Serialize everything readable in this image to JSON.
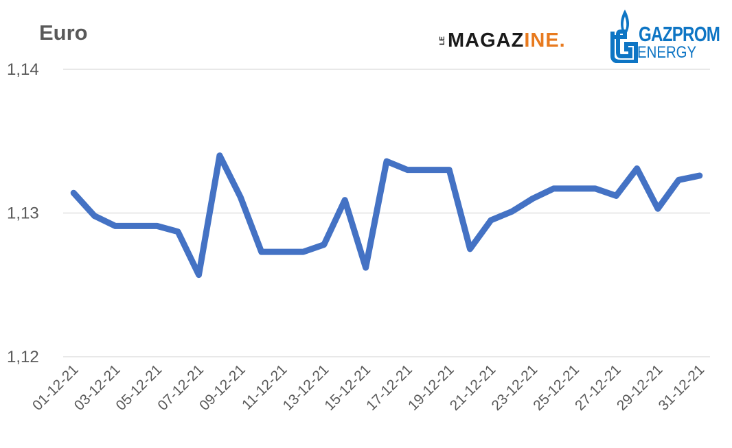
{
  "title": "Euro",
  "logos": {
    "magazine": {
      "prefix": "LE",
      "part1": "MAGAZ",
      "part2": "INE."
    },
    "gazprom": {
      "line1": "GAZPROM",
      "line2": "ENERGY",
      "icon": "gazprom-flame-icon"
    }
  },
  "colors": {
    "line": "#4472c4",
    "grid": "#d9d9d9",
    "text": "#595959",
    "magazine_accent": "#e87a1e",
    "gazprom_blue": "#0e75c4"
  },
  "chart_data": {
    "type": "line",
    "title": "Euro",
    "xlabel": "",
    "ylabel": "",
    "ylim": [
      1.12,
      1.14
    ],
    "yticks": [
      "1,12",
      "1,13",
      "1,14"
    ],
    "ytick_values": [
      1.12,
      1.13,
      1.14
    ],
    "grid": true,
    "xtick_labels": [
      "01-12-21",
      "03-12-21",
      "05-12-21",
      "07-12-21",
      "09-12-21",
      "11-12-21",
      "13-12-21",
      "15-12-21",
      "17-12-21",
      "19-12-21",
      "21-12-21",
      "23-12-21",
      "25-12-21",
      "27-12-21",
      "29-12-21",
      "31-12-21"
    ],
    "x": [
      "01-12-21",
      "02-12-21",
      "03-12-21",
      "04-12-21",
      "05-12-21",
      "06-12-21",
      "07-12-21",
      "08-12-21",
      "09-12-21",
      "10-12-21",
      "11-12-21",
      "12-12-21",
      "13-12-21",
      "14-12-21",
      "15-12-21",
      "16-12-21",
      "17-12-21",
      "18-12-21",
      "19-12-21",
      "20-12-21",
      "21-12-21",
      "22-12-21",
      "23-12-21",
      "24-12-21",
      "25-12-21",
      "26-12-21",
      "27-12-21",
      "28-12-21",
      "29-12-21",
      "30-12-21",
      "31-12-21"
    ],
    "series": [
      {
        "values": [
          1.1314,
          1.1298,
          1.1291,
          1.1291,
          1.1291,
          1.1287,
          1.1257,
          1.134,
          1.1311,
          1.1273,
          1.1273,
          1.1273,
          1.1278,
          1.1309,
          1.1262,
          1.1336,
          1.133,
          1.133,
          1.133,
          1.1275,
          1.1295,
          1.1301,
          1.131,
          1.1317,
          1.1317,
          1.1317,
          1.1312,
          1.1331,
          1.1303,
          1.1323,
          1.1326
        ]
      }
    ]
  }
}
